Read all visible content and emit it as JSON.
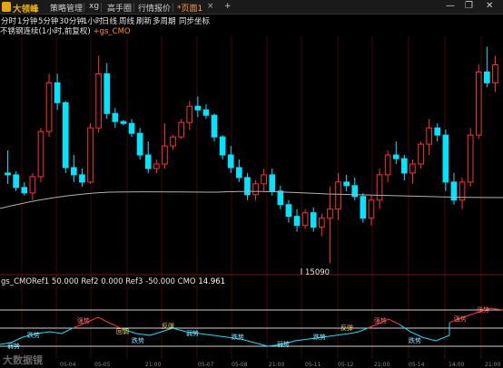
{
  "app": {
    "brand": "大领峰",
    "tabs": [
      {
        "label": "策略管理",
        "active": false
      },
      {
        "label": "xg",
        "active": false
      },
      {
        "label": "高手圈",
        "active": false
      },
      {
        "label": "行情报价",
        "active": false
      },
      {
        "label": "*页面1",
        "active": true
      }
    ],
    "new_tab": "+",
    "window_controls": [
      "—",
      "❐",
      "✕"
    ]
  },
  "periods": [
    "分时",
    "1分钟",
    "5分钟",
    "30分钟",
    "1小时",
    "日线",
    "周线",
    "刷新",
    "多周期",
    "同步坐标"
  ],
  "info": {
    "symbol_text": "不锈钢连续(1小时,前复权)",
    "indicator_prefix": "+",
    "indicator": "gs_CMO"
  },
  "price_label": "15090",
  "cmo_legend": {
    "name": "gs_CMO",
    "ref1_label": "Ref1",
    "ref1": "50.000",
    "ref2_label": "Ref2",
    "ref2": "0.000",
    "ref3_label": "Ref3",
    "ref3": "-50.000",
    "cmo_label": "CMO",
    "cmo": "14.961"
  },
  "watermark": "大数据镜",
  "colors": {
    "up": "#ff3030",
    "down": "#00e5ff",
    "ma": "#b0b0b0",
    "background": "#000000",
    "accent": "#ff8a1a"
  },
  "chart_data": {
    "type": "candlestick",
    "y_label_visible": "15090",
    "candles_approx": [
      [
        15190,
        15215,
        15178,
        15188
      ],
      [
        15188,
        15192,
        15170,
        15174
      ],
      [
        15174,
        15180,
        15165,
        15168
      ],
      [
        15168,
        15190,
        15160,
        15186
      ],
      [
        15186,
        15240,
        15180,
        15236
      ],
      [
        15236,
        15300,
        15230,
        15290
      ],
      [
        15290,
        15300,
        15260,
        15268
      ],
      [
        15268,
        15270,
        15190,
        15196
      ],
      [
        15196,
        15210,
        15180,
        15188
      ],
      [
        15188,
        15195,
        15175,
        15180
      ],
      [
        15180,
        15245,
        15178,
        15240
      ],
      [
        15240,
        15320,
        15235,
        15300
      ],
      [
        15300,
        15312,
        15250,
        15256
      ],
      [
        15256,
        15262,
        15240,
        15247
      ],
      [
        15247,
        15249,
        15243,
        15245
      ],
      [
        15245,
        15250,
        15230,
        15234
      ],
      [
        15234,
        15240,
        15205,
        15210
      ],
      [
        15210,
        15225,
        15190,
        15195
      ],
      [
        15195,
        15205,
        15190,
        15200
      ],
      [
        15200,
        15245,
        15195,
        15220
      ],
      [
        15220,
        15232,
        15216,
        15230
      ],
      [
        15230,
        15250,
        15228,
        15246
      ],
      [
        15246,
        15270,
        15238,
        15264
      ],
      [
        15264,
        15275,
        15252,
        15260
      ],
      [
        15260,
        15266,
        15250,
        15254
      ],
      [
        15254,
        15256,
        15225,
        15230
      ],
      [
        15230,
        15232,
        15205,
        15210
      ],
      [
        15210,
        15220,
        15190,
        15196
      ],
      [
        15196,
        15205,
        15180,
        15185
      ],
      [
        15185,
        15190,
        15160,
        15166
      ],
      [
        15166,
        15182,
        15160,
        15178
      ],
      [
        15178,
        15195,
        15170,
        15188
      ],
      [
        15188,
        15195,
        15165,
        15170
      ],
      [
        15170,
        15176,
        15150,
        15155
      ],
      [
        15155,
        15160,
        15135,
        15142
      ],
      [
        15142,
        15150,
        15125,
        15132
      ],
      [
        15132,
        15150,
        15128,
        15146
      ],
      [
        15146,
        15152,
        15125,
        15130
      ],
      [
        15130,
        15145,
        15120,
        15140
      ],
      [
        15140,
        15175,
        15090,
        15150
      ],
      [
        15150,
        15190,
        15138,
        15180
      ],
      [
        15180,
        15188,
        15170,
        15176
      ],
      [
        15176,
        15185,
        15160,
        15164
      ],
      [
        15164,
        15168,
        15135,
        15140
      ],
      [
        15140,
        15165,
        15132,
        15160
      ],
      [
        15160,
        15195,
        15150,
        15188
      ],
      [
        15188,
        15215,
        15180,
        15210
      ],
      [
        15210,
        15225,
        15200,
        15206
      ],
      [
        15206,
        15210,
        15182,
        15190
      ],
      [
        15190,
        15205,
        15178,
        15200
      ],
      [
        15200,
        15225,
        15195,
        15222
      ],
      [
        15222,
        15250,
        15210,
        15240
      ],
      [
        15240,
        15245,
        15225,
        15232
      ],
      [
        15232,
        15238,
        15170,
        15180
      ],
      [
        15180,
        15190,
        15155,
        15160
      ],
      [
        15160,
        15185,
        15150,
        15180
      ],
      [
        15180,
        15240,
        15175,
        15232
      ],
      [
        15232,
        15310,
        15228,
        15302
      ],
      [
        15302,
        15330,
        15285,
        15290
      ],
      [
        15290,
        15320,
        15280,
        15310
      ]
    ],
    "ma_line_visible": true,
    "sub_chart": {
      "name": "gs_CMO",
      "ref_lines": {
        "Ref1": 50.0,
        "Ref2": 0.0,
        "Ref3": -50.0
      },
      "cmo_last": 14.961
    }
  }
}
